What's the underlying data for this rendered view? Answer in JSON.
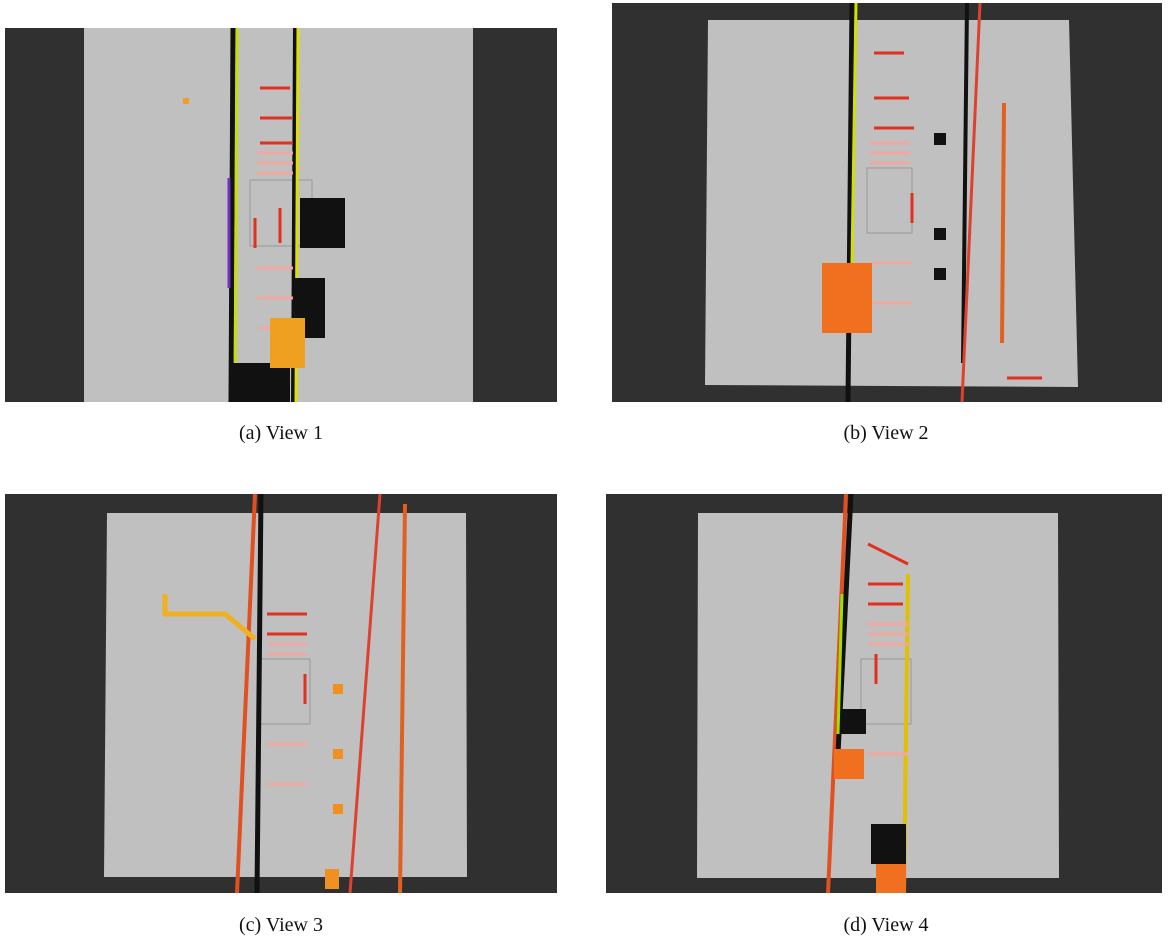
{
  "figure": {
    "panels": [
      {
        "caption": "(a) View 1"
      },
      {
        "caption": "(b) View 2"
      },
      {
        "caption": "(c) View 3"
      },
      {
        "caption": "(d) View 4"
      }
    ]
  }
}
